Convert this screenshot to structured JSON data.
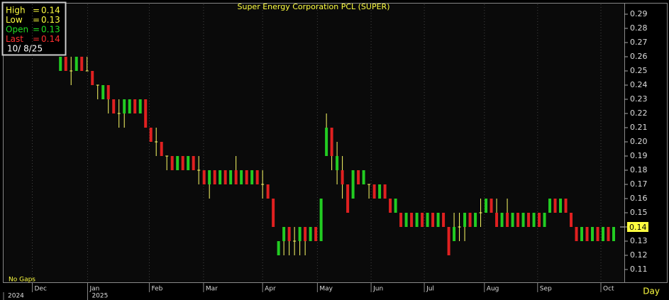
{
  "chart_data": {
    "type": "ohlc",
    "title": "Super Energy Corporation PCL (SUPER)",
    "info": [
      {
        "label": "High",
        "equals": "=",
        "value": 0.14,
        "color": "#ffff40"
      },
      {
        "label": "Low",
        "equals": "=",
        "value": 0.13,
        "color": "#ffff40"
      },
      {
        "label": "Open",
        "equals": "=",
        "value": 0.13,
        "color": "#22dd22"
      },
      {
        "label": "Last",
        "equals": "=",
        "value": 0.14,
        "color": "#ff3030"
      }
    ],
    "date": "10/ 8/25",
    "gap_mode": "No Gaps",
    "period": "Day",
    "up_color": "#22cc22",
    "down_color": "#e02020",
    "range_color": "#ffff66",
    "open": [
      0.25,
      0.26,
      0.25,
      0.25,
      0.26,
      0.25,
      0.25,
      0.24,
      0.23,
      0.24,
      0.23,
      0.22,
      0.22,
      0.22,
      0.23,
      0.22,
      0.23,
      0.21,
      0.2,
      0.2,
      0.19,
      0.19,
      0.18,
      0.19,
      0.18,
      0.19,
      0.18,
      0.18,
      0.17,
      0.18,
      0.17,
      0.18,
      0.17,
      0.18,
      0.17,
      0.18,
      0.17,
      0.18,
      0.17,
      0.17,
      0.16,
      0.12,
      0.13,
      0.14,
      0.13,
      0.13,
      0.14,
      0.13,
      0.14,
      0.13,
      0.19,
      0.21,
      0.18,
      0.18,
      0.17,
      0.16,
      0.18,
      0.17,
      0.17,
      0.17,
      0.16,
      0.17,
      0.16,
      0.15,
      0.15,
      0.14,
      0.15,
      0.14,
      0.15,
      0.14,
      0.15,
      0.14,
      0.15,
      0.14,
      0.13,
      0.14,
      0.14,
      0.15,
      0.14,
      0.15,
      0.15,
      0.16,
      0.15,
      0.14,
      0.15,
      0.14,
      0.15,
      0.14,
      0.15,
      0.14,
      0.15,
      0.14,
      0.15,
      0.16,
      0.15,
      0.16,
      0.15,
      0.14,
      0.13,
      0.14,
      0.13,
      0.14,
      0.13,
      0.14,
      0.13
    ],
    "high": [
      0.26,
      0.26,
      0.26,
      0.26,
      0.26,
      0.26,
      0.25,
      0.24,
      0.24,
      0.24,
      0.23,
      0.23,
      0.23,
      0.23,
      0.23,
      0.23,
      0.23,
      0.21,
      0.21,
      0.2,
      0.19,
      0.19,
      0.19,
      0.19,
      0.19,
      0.19,
      0.19,
      0.18,
      0.18,
      0.18,
      0.18,
      0.18,
      0.18,
      0.19,
      0.18,
      0.18,
      0.18,
      0.18,
      0.18,
      0.17,
      0.16,
      0.13,
      0.14,
      0.14,
      0.14,
      0.14,
      0.14,
      0.14,
      0.14,
      0.16,
      0.22,
      0.21,
      0.2,
      0.19,
      0.17,
      0.18,
      0.18,
      0.18,
      0.17,
      0.17,
      0.17,
      0.17,
      0.16,
      0.16,
      0.15,
      0.15,
      0.15,
      0.15,
      0.15,
      0.15,
      0.15,
      0.15,
      0.15,
      0.14,
      0.15,
      0.15,
      0.15,
      0.15,
      0.15,
      0.16,
      0.16,
      0.16,
      0.16,
      0.15,
      0.16,
      0.15,
      0.15,
      0.15,
      0.15,
      0.15,
      0.15,
      0.15,
      0.16,
      0.16,
      0.16,
      0.16,
      0.15,
      0.14,
      0.14,
      0.14,
      0.14,
      0.14,
      0.14,
      0.14,
      0.14
    ],
    "low": [
      0.25,
      0.25,
      0.24,
      0.25,
      0.25,
      0.25,
      0.24,
      0.23,
      0.23,
      0.22,
      0.22,
      0.21,
      0.21,
      0.22,
      0.22,
      0.22,
      0.21,
      0.2,
      0.19,
      0.19,
      0.18,
      0.18,
      0.18,
      0.18,
      0.18,
      0.18,
      0.17,
      0.17,
      0.16,
      0.17,
      0.17,
      0.17,
      0.17,
      0.17,
      0.17,
      0.17,
      0.17,
      0.17,
      0.16,
      0.16,
      0.14,
      0.12,
      0.12,
      0.12,
      0.12,
      0.12,
      0.12,
      0.13,
      0.13,
      0.13,
      0.19,
      0.18,
      0.17,
      0.16,
      0.15,
      0.16,
      0.17,
      0.17,
      0.16,
      0.16,
      0.16,
      0.16,
      0.15,
      0.15,
      0.14,
      0.14,
      0.14,
      0.14,
      0.14,
      0.14,
      0.14,
      0.14,
      0.14,
      0.12,
      0.13,
      0.13,
      0.13,
      0.14,
      0.14,
      0.14,
      0.15,
      0.15,
      0.14,
      0.14,
      0.14,
      0.14,
      0.14,
      0.14,
      0.14,
      0.14,
      0.14,
      0.14,
      0.15,
      0.15,
      0.15,
      0.15,
      0.14,
      0.13,
      0.13,
      0.13,
      0.13,
      0.13,
      0.13,
      0.13,
      0.13
    ],
    "close": [
      0.26,
      0.25,
      0.25,
      0.26,
      0.25,
      0.25,
      0.24,
      0.24,
      0.24,
      0.23,
      0.22,
      0.22,
      0.23,
      0.23,
      0.22,
      0.23,
      0.21,
      0.2,
      0.2,
      0.19,
      0.19,
      0.18,
      0.19,
      0.18,
      0.19,
      0.18,
      0.18,
      0.17,
      0.18,
      0.17,
      0.18,
      0.17,
      0.18,
      0.17,
      0.18,
      0.17,
      0.18,
      0.17,
      0.17,
      0.16,
      0.14,
      0.13,
      0.14,
      0.13,
      0.13,
      0.14,
      0.13,
      0.14,
      0.13,
      0.16,
      0.21,
      0.19,
      0.19,
      0.17,
      0.15,
      0.18,
      0.17,
      0.18,
      0.17,
      0.16,
      0.17,
      0.16,
      0.15,
      0.16,
      0.14,
      0.15,
      0.14,
      0.15,
      0.14,
      0.15,
      0.14,
      0.15,
      0.14,
      0.12,
      0.14,
      0.14,
      0.15,
      0.14,
      0.15,
      0.15,
      0.16,
      0.15,
      0.14,
      0.15,
      0.14,
      0.15,
      0.14,
      0.15,
      0.14,
      0.15,
      0.14,
      0.15,
      0.16,
      0.15,
      0.16,
      0.15,
      0.14,
      0.13,
      0.14,
      0.13,
      0.14,
      0.13,
      0.14,
      0.13,
      0.14
    ],
    "xlim": [
      -10.7,
      106
    ],
    "xticks": [
      {
        "value": -5.3,
        "label": "Dec"
      },
      {
        "value": 5.1,
        "label": "Jan"
      },
      {
        "value": 16.7,
        "label": "Feb"
      },
      {
        "value": 26.9,
        "label": "Mar"
      },
      {
        "value": 38,
        "label": "Apr"
      },
      {
        "value": 48.3,
        "label": "May"
      },
      {
        "value": 58.4,
        "label": "Jun"
      },
      {
        "value": 68.4,
        "label": "Jul"
      },
      {
        "value": 79.7,
        "label": "Aug"
      },
      {
        "value": 89.7,
        "label": "Sep"
      },
      {
        "value": 101.6,
        "label": "Oct"
      }
    ],
    "year_ticks": [
      {
        "value": -10.7,
        "label": "2024"
      },
      {
        "value": 5.1,
        "label": "2025"
      }
    ],
    "ylim": [
      0.101,
      0.2975
    ],
    "yticks": [
      0.11,
      0.12,
      0.13,
      0.14,
      0.15,
      0.16,
      0.17,
      0.18,
      0.19,
      {
        "value": 0.2,
        "label": "0.20"
      },
      0.21,
      0.22,
      0.23,
      0.24,
      0.25,
      0.26,
      0.27,
      0.28,
      0.29
    ],
    "grid": true
  }
}
